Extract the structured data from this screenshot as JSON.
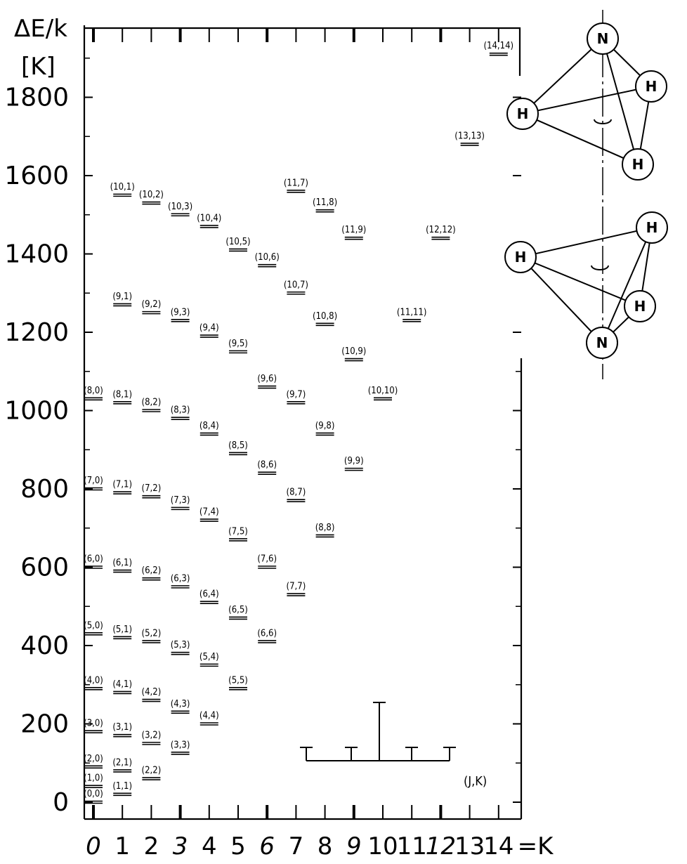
{
  "y_axis": {
    "title_line1": "ΔE/k",
    "title_line2": "[K]",
    "ticks": [
      "0",
      "200",
      "400",
      "600",
      "800",
      "1000",
      "1200",
      "1400",
      "1600",
      "1800"
    ]
  },
  "x_axis": {
    "ticks": [
      "0",
      "1",
      "2",
      "3",
      "4",
      "5",
      "6",
      "7",
      "8",
      "9",
      "10",
      "11",
      "12",
      "13",
      "14"
    ],
    "suffix": "=K"
  },
  "legend_label": "(J,K)",
  "molecules": {
    "top": {
      "n": "N",
      "h1": "H",
      "h2": "H",
      "h3": "H"
    },
    "bottom": {
      "n": "N",
      "h1": "H",
      "h2": "H",
      "h3": "H"
    }
  },
  "chart_data": {
    "type": "energy-level diagram",
    "y_label": "ΔE/k [K]",
    "x_label": "K",
    "y_range": [
      0,
      1850
    ],
    "levels": [
      {
        "label": "(0,0)",
        "K": 0,
        "E": 0
      },
      {
        "label": "(1,0)",
        "K": 0,
        "E": 40
      },
      {
        "label": "(2,0)",
        "K": 0,
        "E": 90
      },
      {
        "label": "(3,0)",
        "K": 0,
        "E": 180
      },
      {
        "label": "(4,0)",
        "K": 0,
        "E": 290
      },
      {
        "label": "(5,0)",
        "K": 0,
        "E": 430
      },
      {
        "label": "(6,0)",
        "K": 0,
        "E": 600
      },
      {
        "label": "(7,0)",
        "K": 0,
        "E": 800
      },
      {
        "label": "(8,0)",
        "K": 0,
        "E": 1030
      },
      {
        "label": "(1,1)",
        "K": 1,
        "E": 20
      },
      {
        "label": "(2,1)",
        "K": 1,
        "E": 80
      },
      {
        "label": "(3,1)",
        "K": 1,
        "E": 170
      },
      {
        "label": "(4,1)",
        "K": 1,
        "E": 280
      },
      {
        "label": "(5,1)",
        "K": 1,
        "E": 420
      },
      {
        "label": "(6,1)",
        "K": 1,
        "E": 590
      },
      {
        "label": "(7,1)",
        "K": 1,
        "E": 790
      },
      {
        "label": "(8,1)",
        "K": 1,
        "E": 1020
      },
      {
        "label": "(9,1)",
        "K": 1,
        "E": 1270
      },
      {
        "label": "(10,1)",
        "K": 1,
        "E": 1550
      },
      {
        "label": "(2,2)",
        "K": 2,
        "E": 60
      },
      {
        "label": "(3,2)",
        "K": 2,
        "E": 150
      },
      {
        "label": "(4,2)",
        "K": 2,
        "E": 260
      },
      {
        "label": "(5,2)",
        "K": 2,
        "E": 410
      },
      {
        "label": "(6,2)",
        "K": 2,
        "E": 570
      },
      {
        "label": "(7,2)",
        "K": 2,
        "E": 780
      },
      {
        "label": "(8,2)",
        "K": 2,
        "E": 1000
      },
      {
        "label": "(9,2)",
        "K": 2,
        "E": 1250
      },
      {
        "label": "(10,2)",
        "K": 2,
        "E": 1530
      },
      {
        "label": "(3,3)",
        "K": 3,
        "E": 125
      },
      {
        "label": "(4,3)",
        "K": 3,
        "E": 230
      },
      {
        "label": "(5,3)",
        "K": 3,
        "E": 380
      },
      {
        "label": "(6,3)",
        "K": 3,
        "E": 550
      },
      {
        "label": "(7,3)",
        "K": 3,
        "E": 750
      },
      {
        "label": "(8,3)",
        "K": 3,
        "E": 980
      },
      {
        "label": "(9,3)",
        "K": 3,
        "E": 1230
      },
      {
        "label": "(10,3)",
        "K": 3,
        "E": 1500
      },
      {
        "label": "(4,4)",
        "K": 4,
        "E": 200
      },
      {
        "label": "(5,4)",
        "K": 4,
        "E": 350
      },
      {
        "label": "(6,4)",
        "K": 4,
        "E": 510
      },
      {
        "label": "(7,4)",
        "K": 4,
        "E": 720
      },
      {
        "label": "(8,4)",
        "K": 4,
        "E": 940
      },
      {
        "label": "(9,4)",
        "K": 4,
        "E": 1190
      },
      {
        "label": "(10,4)",
        "K": 4,
        "E": 1470
      },
      {
        "label": "(5,5)",
        "K": 5,
        "E": 290
      },
      {
        "label": "(6,5)",
        "K": 5,
        "E": 470
      },
      {
        "label": "(7,5)",
        "K": 5,
        "E": 670
      },
      {
        "label": "(8,5)",
        "K": 5,
        "E": 890
      },
      {
        "label": "(9,5)",
        "K": 5,
        "E": 1150
      },
      {
        "label": "(10,5)",
        "K": 5,
        "E": 1410
      },
      {
        "label": "(6,6)",
        "K": 6,
        "E": 410
      },
      {
        "label": "(7,6)",
        "K": 6,
        "E": 600
      },
      {
        "label": "(8,6)",
        "K": 6,
        "E": 840
      },
      {
        "label": "(9,6)",
        "K": 6,
        "E": 1060
      },
      {
        "label": "(10,6)",
        "K": 6,
        "E": 1370
      },
      {
        "label": "(7,7)",
        "K": 7,
        "E": 530
      },
      {
        "label": "(8,7)",
        "K": 7,
        "E": 770
      },
      {
        "label": "(9,7)",
        "K": 7,
        "E": 1020
      },
      {
        "label": "(10,7)",
        "K": 7,
        "E": 1300
      },
      {
        "label": "(11,7)",
        "K": 7,
        "E": 1560
      },
      {
        "label": "(8,8)",
        "K": 8,
        "E": 680
      },
      {
        "label": "(9,8)",
        "K": 8,
        "E": 940
      },
      {
        "label": "(10,8)",
        "K": 8,
        "E": 1220
      },
      {
        "label": "(11,8)",
        "K": 8,
        "E": 1510
      },
      {
        "label": "(9,9)",
        "K": 9,
        "E": 850
      },
      {
        "label": "(10,9)",
        "K": 9,
        "E": 1130
      },
      {
        "label": "(11,9)",
        "K": 9,
        "E": 1440
      },
      {
        "label": "(10,10)",
        "K": 10,
        "E": 1030
      },
      {
        "label": "(11,11)",
        "K": 11,
        "E": 1230
      },
      {
        "label": "(12,12)",
        "K": 12,
        "E": 1440
      },
      {
        "label": "(13,13)",
        "K": 13,
        "E": 1680
      },
      {
        "label": "(14,14)",
        "K": 14,
        "E": 1910
      }
    ]
  }
}
